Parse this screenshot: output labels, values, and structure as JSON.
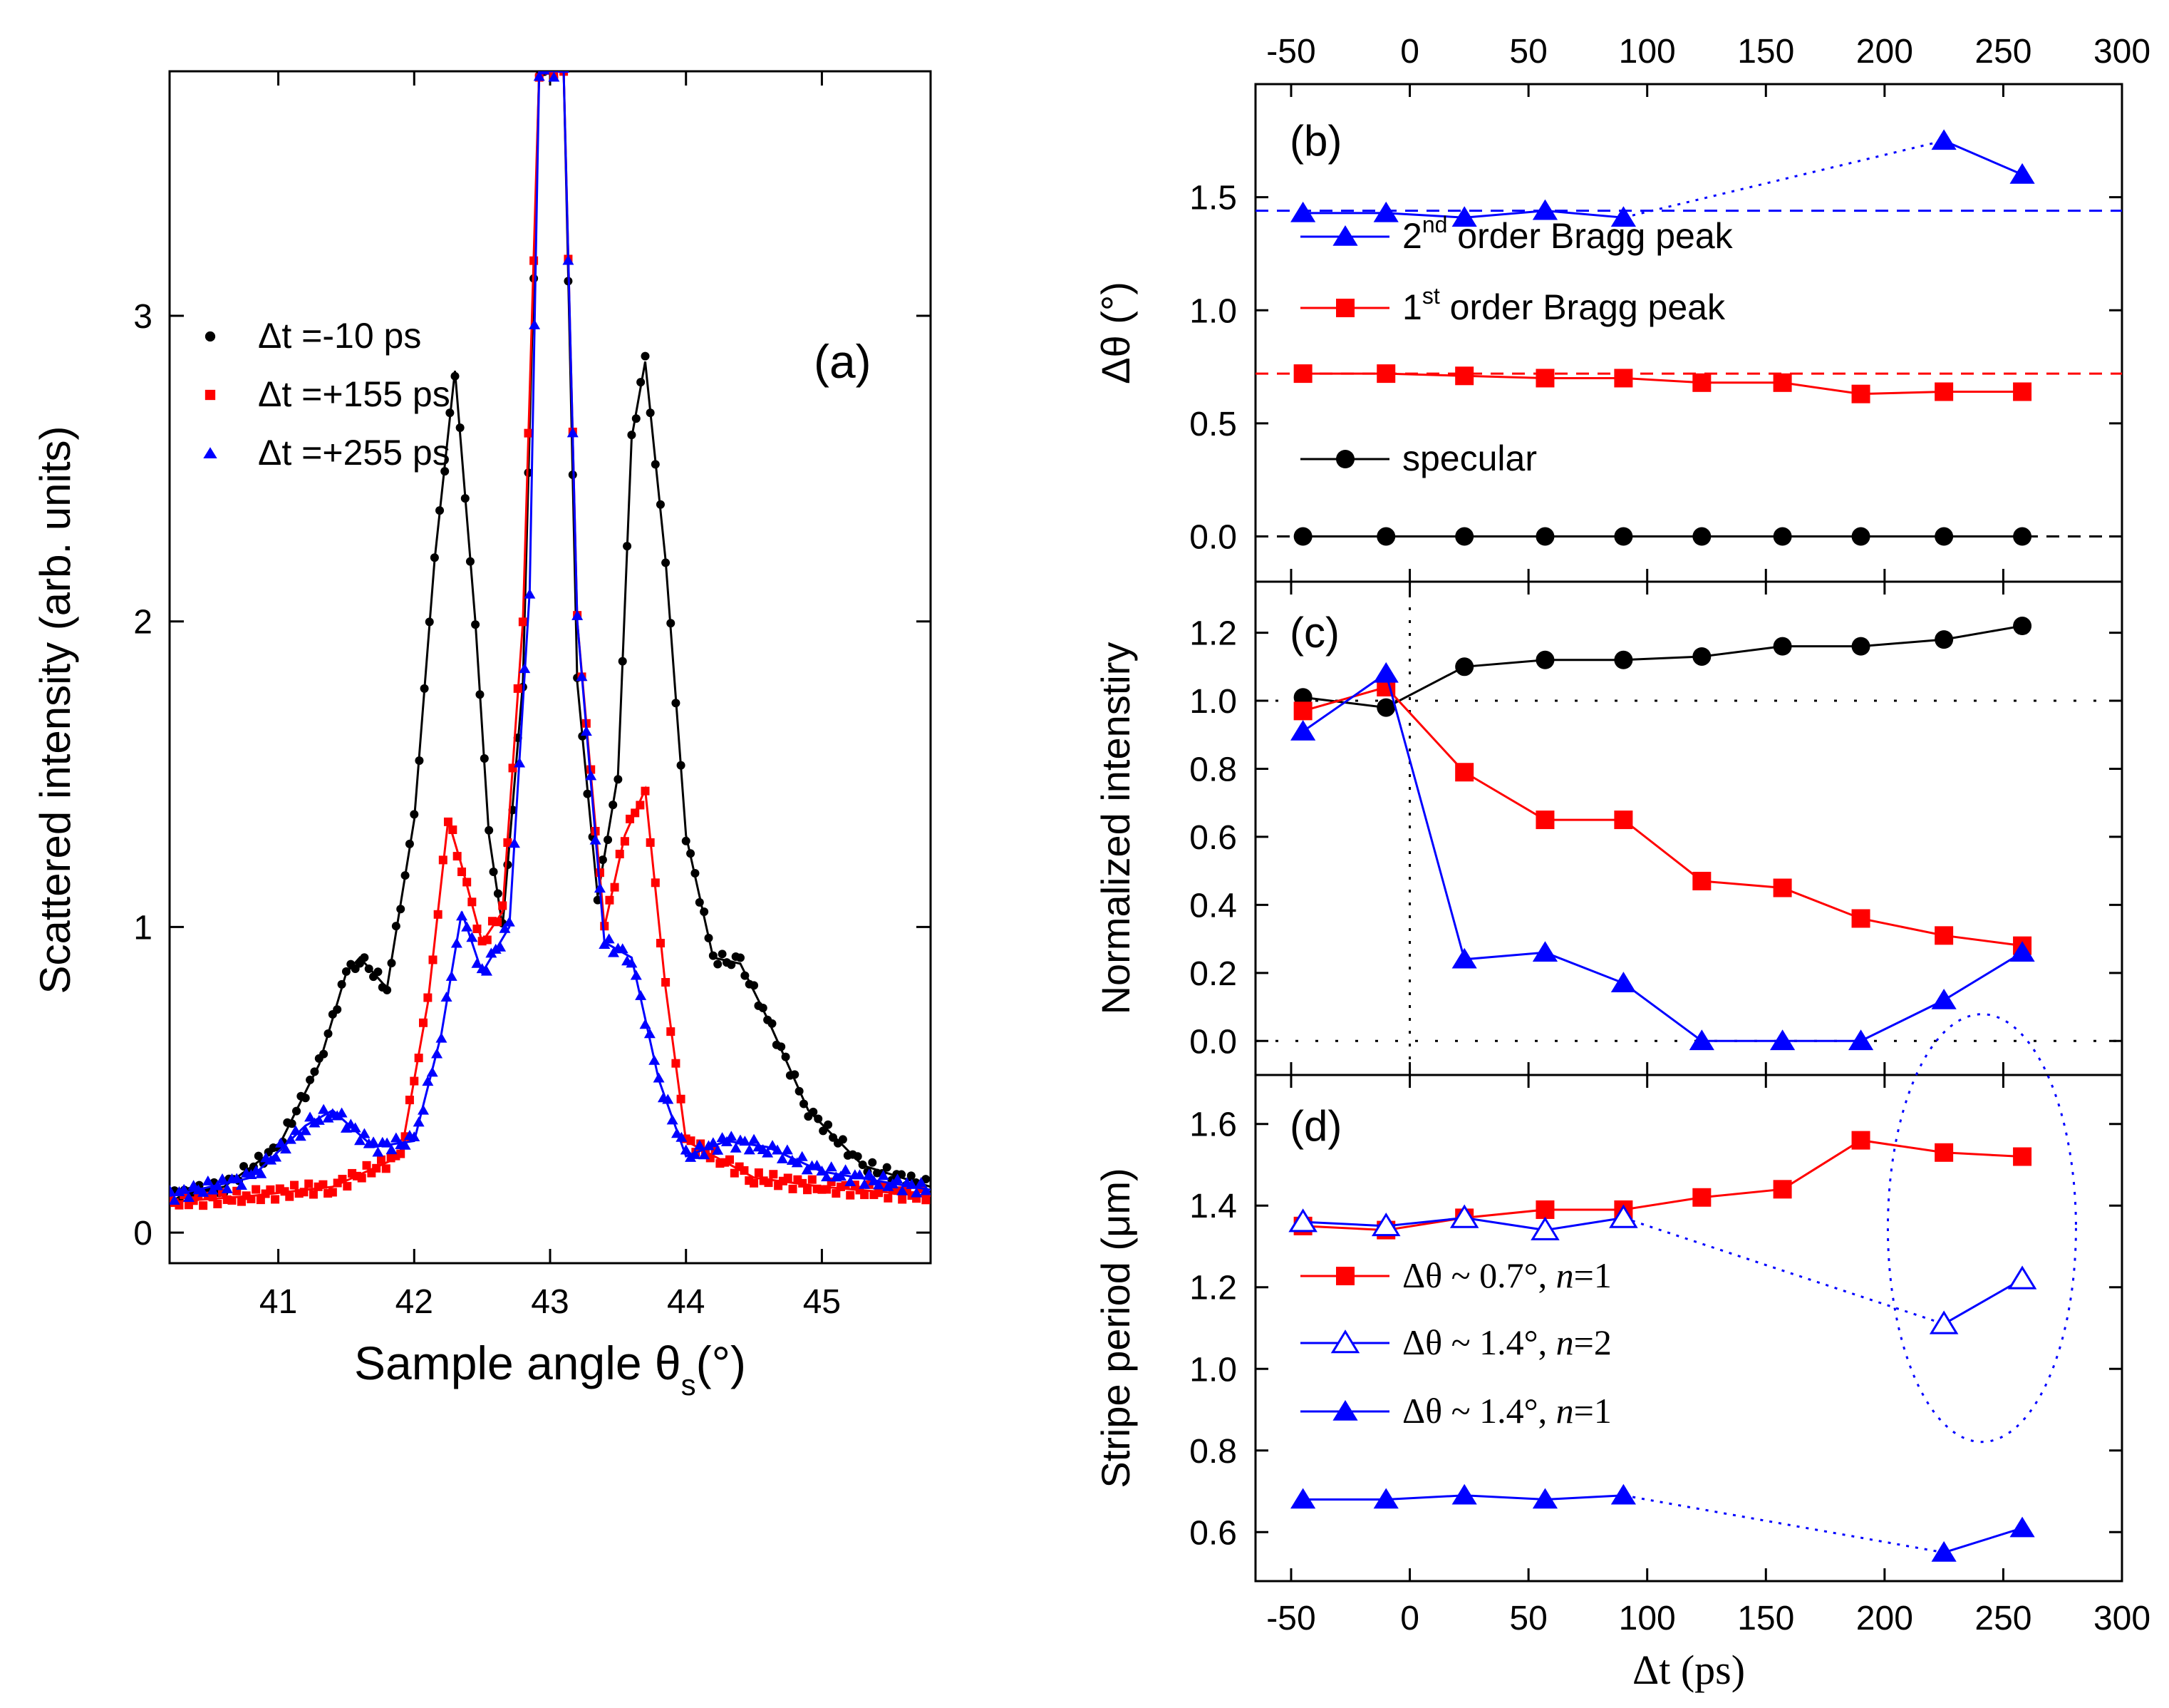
{
  "chart_data": [
    {
      "id": "a",
      "type": "scatter",
      "panel_label": "(a)",
      "xlabel": "Sample angle θ",
      "xlabel_sub": "s",
      "xlabel_suffix": "(°)",
      "ylabel": "Scattered intensity (arb. units)",
      "xlim": [
        40.2,
        45.8
      ],
      "ylim": [
        -0.1,
        3.8
      ],
      "xticks": [
        41,
        42,
        43,
        44,
        45
      ],
      "yticks": [
        0,
        1,
        2,
        3
      ],
      "legend_position": "top-left",
      "series": [
        {
          "name": "Δt =-10 ps",
          "color": "#000000",
          "marker": "circle",
          "points": [
            [
              40.2,
              0.12
            ],
            [
              40.6,
              0.15
            ],
            [
              41.0,
              0.28
            ],
            [
              41.3,
              0.55
            ],
            [
              41.5,
              0.85
            ],
            [
              41.6,
              0.9
            ],
            [
              41.8,
              0.8
            ],
            [
              42.0,
              1.35
            ],
            [
              42.15,
              2.2
            ],
            [
              42.3,
              2.82
            ],
            [
              42.45,
              2.0
            ],
            [
              42.55,
              1.3
            ],
            [
              42.65,
              1.0
            ],
            [
              42.8,
              1.8
            ],
            [
              42.92,
              3.8
            ],
            [
              43.1,
              3.8
            ],
            [
              43.2,
              1.8
            ],
            [
              43.35,
              1.1
            ],
            [
              43.5,
              1.5
            ],
            [
              43.6,
              2.6
            ],
            [
              43.7,
              2.85
            ],
            [
              43.85,
              2.2
            ],
            [
              44.0,
              1.3
            ],
            [
              44.2,
              0.9
            ],
            [
              44.4,
              0.88
            ],
            [
              44.6,
              0.7
            ],
            [
              44.9,
              0.4
            ],
            [
              45.3,
              0.22
            ],
            [
              45.8,
              0.15
            ]
          ]
        },
        {
          "name": "Δt =+155 ps",
          "color": "#ff0000",
          "marker": "square",
          "points": [
            [
              40.2,
              0.1
            ],
            [
              40.8,
              0.12
            ],
            [
              41.4,
              0.15
            ],
            [
              41.9,
              0.25
            ],
            [
              42.1,
              0.75
            ],
            [
              42.25,
              1.35
            ],
            [
              42.35,
              1.2
            ],
            [
              42.5,
              0.95
            ],
            [
              42.65,
              1.05
            ],
            [
              42.8,
              2.0
            ],
            [
              42.92,
              3.8
            ],
            [
              43.1,
              3.8
            ],
            [
              43.2,
              2.0
            ],
            [
              43.4,
              1.0
            ],
            [
              43.55,
              1.3
            ],
            [
              43.7,
              1.45
            ],
            [
              43.85,
              0.8
            ],
            [
              44.0,
              0.3
            ],
            [
              44.5,
              0.18
            ],
            [
              45.0,
              0.15
            ],
            [
              45.8,
              0.12
            ]
          ]
        },
        {
          "name": "Δt =+255 ps",
          "color": "#0000ff",
          "marker": "triangle",
          "points": [
            [
              40.2,
              0.12
            ],
            [
              40.8,
              0.18
            ],
            [
              41.2,
              0.35
            ],
            [
              41.4,
              0.4
            ],
            [
              41.7,
              0.28
            ],
            [
              42.0,
              0.3
            ],
            [
              42.2,
              0.65
            ],
            [
              42.35,
              1.05
            ],
            [
              42.5,
              0.85
            ],
            [
              42.7,
              1.0
            ],
            [
              42.85,
              2.1
            ],
            [
              42.92,
              3.8
            ],
            [
              43.1,
              3.8
            ],
            [
              43.2,
              2.0
            ],
            [
              43.4,
              0.95
            ],
            [
              43.6,
              0.9
            ],
            [
              43.8,
              0.5
            ],
            [
              44.0,
              0.25
            ],
            [
              44.3,
              0.3
            ],
            [
              44.6,
              0.28
            ],
            [
              45.0,
              0.2
            ],
            [
              45.8,
              0.14
            ]
          ]
        }
      ]
    },
    {
      "id": "b",
      "type": "line",
      "panel_label": "(b)",
      "ylabel": "Δθ (°)",
      "xlim": [
        -65,
        300
      ],
      "ylim": [
        -0.2,
        2.0
      ],
      "xticks": [
        -50,
        0,
        50,
        100,
        150,
        200,
        250,
        300
      ],
      "yticks": [
        0.0,
        0.5,
        1.0,
        1.5
      ],
      "hlines": [
        {
          "y": 1.44,
          "color": "#0000ff"
        },
        {
          "y": 0.72,
          "color": "#ff0000"
        },
        {
          "y": 0.0,
          "color": "#000000"
        }
      ],
      "series": [
        {
          "name": "2",
          "name_sup": "nd",
          "name_rest": " order Bragg peak",
          "color": "#0000ff",
          "marker": "triangle",
          "x": [
            -45,
            -10,
            23,
            57,
            90,
            225,
            258
          ],
          "y": [
            1.43,
            1.43,
            1.41,
            1.44,
            1.41,
            1.75,
            1.6
          ],
          "dotted_after_index": 4
        },
        {
          "name": "1",
          "name_sup": "st",
          "name_rest": " order Bragg peak",
          "color": "#ff0000",
          "marker": "square",
          "x": [
            -45,
            -10,
            23,
            57,
            90,
            123,
            157,
            190,
            225,
            258
          ],
          "y": [
            0.72,
            0.72,
            0.71,
            0.7,
            0.7,
            0.68,
            0.68,
            0.63,
            0.64,
            0.64
          ]
        },
        {
          "name": "specular",
          "color": "#000000",
          "marker": "circle",
          "x": [
            -45,
            -10,
            23,
            57,
            90,
            123,
            157,
            190,
            225,
            258
          ],
          "y": [
            0,
            0,
            0,
            0,
            0,
            0,
            0,
            0,
            0,
            0
          ]
        }
      ]
    },
    {
      "id": "c",
      "type": "line",
      "panel_label": "(c)",
      "ylabel": "Normalized intenstiry",
      "xlim": [
        -65,
        300
      ],
      "ylim": [
        -0.1,
        1.35
      ],
      "yticks": [
        0.0,
        0.2,
        0.4,
        0.6,
        0.8,
        1.0,
        1.2
      ],
      "reference_lines": [
        {
          "y": 1.0
        },
        {
          "y": 0.0
        },
        {
          "x": 0
        }
      ],
      "series": [
        {
          "name": "specular",
          "color": "#000000",
          "marker": "circle",
          "x": [
            -45,
            -10,
            23,
            57,
            90,
            123,
            157,
            190,
            225,
            258
          ],
          "y": [
            1.01,
            0.98,
            1.1,
            1.12,
            1.12,
            1.13,
            1.16,
            1.16,
            1.18,
            1.22
          ]
        },
        {
          "name": "1st order Bragg peak",
          "color": "#ff0000",
          "marker": "square",
          "x": [
            -45,
            -10,
            23,
            57,
            90,
            123,
            157,
            190,
            225,
            258
          ],
          "y": [
            0.97,
            1.04,
            0.79,
            0.65,
            0.65,
            0.47,
            0.45,
            0.36,
            0.31,
            0.28
          ]
        },
        {
          "name": "2nd order Bragg peak",
          "color": "#0000ff",
          "marker": "triangle",
          "x": [
            -45,
            -10,
            23,
            57,
            90,
            123,
            157,
            190,
            225,
            258
          ],
          "y": [
            0.91,
            1.08,
            0.24,
            0.26,
            0.17,
            0.0,
            0.0,
            0.0,
            0.12,
            0.26
          ]
        }
      ]
    },
    {
      "id": "d",
      "type": "line",
      "panel_label": "(d)",
      "xlabel": "Δt (ps)",
      "ylabel": "Stripe period (μm)",
      "xlim": [
        -65,
        300
      ],
      "ylim": [
        0.48,
        1.72
      ],
      "xticks": [
        -50,
        0,
        50,
        100,
        150,
        200,
        250,
        300
      ],
      "yticks": [
        0.6,
        0.8,
        1.0,
        1.2,
        1.4,
        1.6
      ],
      "annotation": "dotted ellipse around x = 225–258 ps points",
      "series": [
        {
          "name": "Δθ ~ 0.7°,  ",
          "name_n": "n",
          "name_rest": "=1",
          "color": "#ff0000",
          "marker": "square",
          "x": [
            -45,
            -10,
            23,
            57,
            90,
            123,
            157,
            190,
            225,
            258
          ],
          "y": [
            1.35,
            1.34,
            1.37,
            1.39,
            1.39,
            1.42,
            1.44,
            1.56,
            1.53,
            1.52
          ]
        },
        {
          "name": "Δθ ~ 1.4°,  ",
          "name_n": "n",
          "name_rest": "=2",
          "color": "#0000ff",
          "marker": "triangle-open",
          "x": [
            -45,
            -10,
            23,
            57,
            90,
            225,
            258
          ],
          "y": [
            1.36,
            1.35,
            1.37,
            1.34,
            1.37,
            1.11,
            1.22
          ],
          "dotted_after_index": 4
        },
        {
          "name": "Δθ ~ 1.4°,  ",
          "name_n": "n",
          "name_rest": "=1",
          "color": "#0000ff",
          "marker": "triangle",
          "x": [
            -45,
            -10,
            23,
            57,
            90,
            225,
            258
          ],
          "y": [
            0.68,
            0.68,
            0.69,
            0.68,
            0.69,
            0.55,
            0.61
          ],
          "dotted_after_index": 4
        }
      ]
    }
  ]
}
